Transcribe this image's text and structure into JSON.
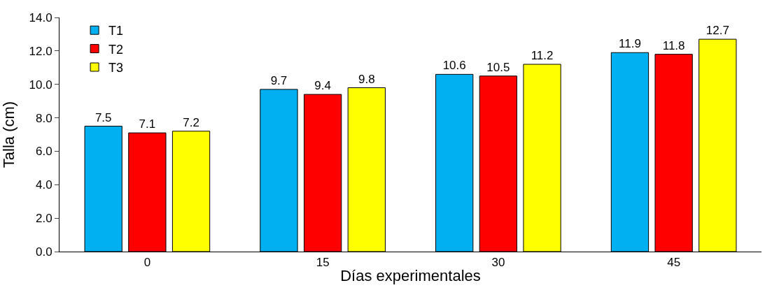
{
  "chart_data": {
    "type": "bar",
    "xlabel": "Días experimentales",
    "ylabel": "Talla (cm)",
    "categories": [
      "0",
      "15",
      "30",
      "45"
    ],
    "series": [
      {
        "name": "T1",
        "color": "#00b0f0",
        "values": [
          7.5,
          9.7,
          10.6,
          11.9
        ]
      },
      {
        "name": "T2",
        "color": "#ff0000",
        "values": [
          7.1,
          9.4,
          10.5,
          11.8
        ]
      },
      {
        "name": "T3",
        "color": "#ffff00",
        "values": [
          7.2,
          9.8,
          11.2,
          12.7
        ]
      }
    ],
    "ylim": [
      0,
      14
    ],
    "yticks": [
      {
        "value": 0,
        "label": "0.0"
      },
      {
        "value": 2,
        "label": "2.0"
      },
      {
        "value": 4,
        "label": "4.0"
      },
      {
        "value": 6,
        "label": "6.0"
      },
      {
        "value": 8,
        "label": "8.0"
      },
      {
        "value": 10,
        "label": "10.0"
      },
      {
        "value": 12,
        "label": "12.0"
      },
      {
        "value": 14,
        "label": "14.0"
      }
    ],
    "data_labels": true,
    "grid": false,
    "legend": "top left"
  }
}
